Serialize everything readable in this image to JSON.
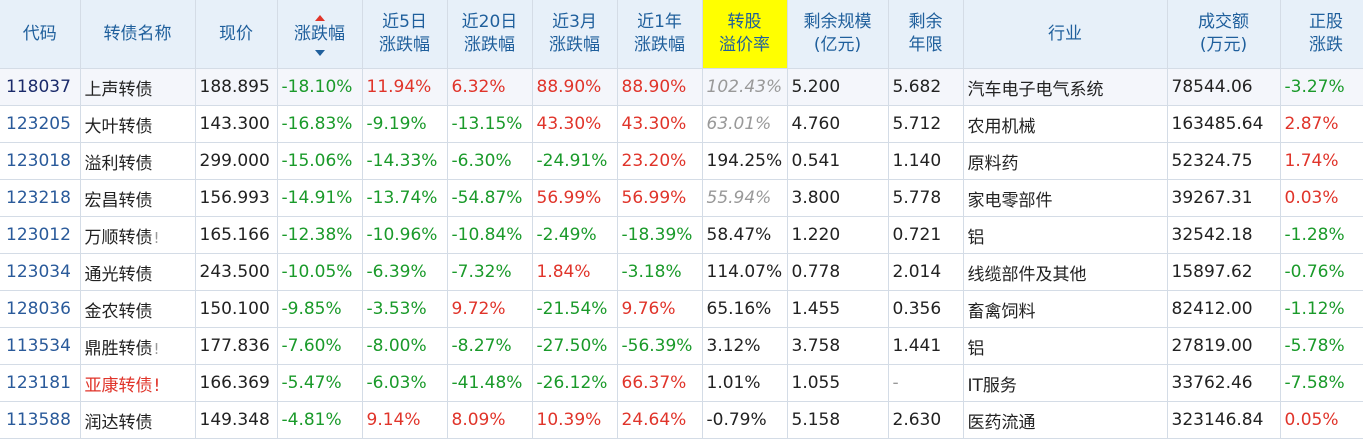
{
  "headers": {
    "code": "代码",
    "name": "转债名称",
    "price": "现价",
    "chg": "涨跌幅",
    "chg5d_1": "近5日",
    "chg5d_2": "涨跌幅",
    "chg20d_1": "近20日",
    "chg20d_2": "涨跌幅",
    "chg3m_1": "近3月",
    "chg3m_2": "涨跌幅",
    "chg1y_1": "近1年",
    "chg1y_2": "涨跌幅",
    "premium_1": "转股",
    "premium_2": "溢价率",
    "size_1": "剩余规模",
    "size_2": "(亿元)",
    "years_1": "剩余",
    "years_2": "年限",
    "industry": "行业",
    "volume_1": "成交额",
    "volume_2": "(万元)",
    "stock_chg_1": "正股",
    "stock_chg_2": "涨跌"
  },
  "rows": [
    {
      "code": "118037",
      "name": "上声转债",
      "mark": "",
      "price": "188.895",
      "chg": "-18.10%",
      "chg5d": "11.94%",
      "chg20d": "6.32%",
      "chg3m": "88.90%",
      "chg1y": "88.90%",
      "premium": "102.43%",
      "size": "5.200",
      "years": "5.682",
      "industry": "汽车电子电气系统",
      "volume": "78544.06",
      "stock_chg": "-3.27%"
    },
    {
      "code": "123205",
      "name": "大叶转债",
      "mark": "",
      "price": "143.300",
      "chg": "-16.83%",
      "chg5d": "-9.19%",
      "chg20d": "-13.15%",
      "chg3m": "43.30%",
      "chg1y": "43.30%",
      "premium": "63.01%",
      "size": "4.760",
      "years": "5.712",
      "industry": "农用机械",
      "volume": "163485.64",
      "stock_chg": "2.87%"
    },
    {
      "code": "123018",
      "name": "溢利转债",
      "mark": "",
      "price": "299.000",
      "chg": "-15.06%",
      "chg5d": "-14.33%",
      "chg20d": "-6.30%",
      "chg3m": "-24.91%",
      "chg1y": "23.20%",
      "premium": "194.25%",
      "size": "0.541",
      "years": "1.140",
      "industry": "原料药",
      "volume": "52324.75",
      "stock_chg": "1.74%"
    },
    {
      "code": "123218",
      "name": "宏昌转债",
      "mark": "",
      "price": "156.993",
      "chg": "-14.91%",
      "chg5d": "-13.74%",
      "chg20d": "-54.87%",
      "chg3m": "56.99%",
      "chg1y": "56.99%",
      "premium": "55.94%",
      "size": "3.800",
      "years": "5.778",
      "industry": "家电零部件",
      "volume": "39267.31",
      "stock_chg": "0.03%"
    },
    {
      "code": "123012",
      "name": "万顺转债",
      "mark": "!",
      "price": "165.166",
      "chg": "-12.38%",
      "chg5d": "-10.96%",
      "chg20d": "-10.84%",
      "chg3m": "-2.49%",
      "chg1y": "-18.39%",
      "premium": "58.47%",
      "size": "1.220",
      "years": "0.721",
      "industry": "铝",
      "volume": "32542.18",
      "stock_chg": "-1.28%"
    },
    {
      "code": "123034",
      "name": "通光转债",
      "mark": "",
      "price": "243.500",
      "chg": "-10.05%",
      "chg5d": "-6.39%",
      "chg20d": "-7.32%",
      "chg3m": "1.84%",
      "chg1y": "-3.18%",
      "premium": "114.07%",
      "size": "0.778",
      "years": "2.014",
      "industry": "线缆部件及其他",
      "volume": "15897.62",
      "stock_chg": "-0.76%"
    },
    {
      "code": "128036",
      "name": "金农转债",
      "mark": "",
      "price": "150.100",
      "chg": "-9.85%",
      "chg5d": "-3.53%",
      "chg20d": "9.72%",
      "chg3m": "-21.54%",
      "chg1y": "9.76%",
      "premium": "65.16%",
      "size": "1.455",
      "years": "0.356",
      "industry": "畜禽饲料",
      "volume": "82412.00",
      "stock_chg": "-1.12%"
    },
    {
      "code": "113534",
      "name": "鼎胜转债",
      "mark": "!",
      "price": "177.836",
      "chg": "-7.60%",
      "chg5d": "-8.00%",
      "chg20d": "-8.27%",
      "chg3m": "-27.50%",
      "chg1y": "-56.39%",
      "premium": "3.12%",
      "size": "3.758",
      "years": "1.441",
      "industry": "铝",
      "volume": "27819.00",
      "stock_chg": "-5.78%"
    },
    {
      "code": "123181",
      "name": "亚康转债",
      "mark": "!",
      "price": "166.369",
      "chg": "-5.47%",
      "chg5d": "-6.03%",
      "chg20d": "-41.48%",
      "chg3m": "-26.12%",
      "chg1y": "66.37%",
      "premium": "1.01%",
      "size": "1.055",
      "years": "-",
      "industry": "IT服务",
      "volume": "33762.46",
      "stock_chg": "-7.58%"
    },
    {
      "code": "113588",
      "name": "润达转债",
      "mark": "",
      "price": "149.348",
      "chg": "-4.81%",
      "chg5d": "9.14%",
      "chg20d": "8.09%",
      "chg3m": "10.39%",
      "chg1y": "24.64%",
      "premium": "-0.79%",
      "size": "5.158",
      "years": "2.630",
      "industry": "医药流通",
      "volume": "323146.84",
      "stock_chg": "0.05%"
    }
  ]
}
